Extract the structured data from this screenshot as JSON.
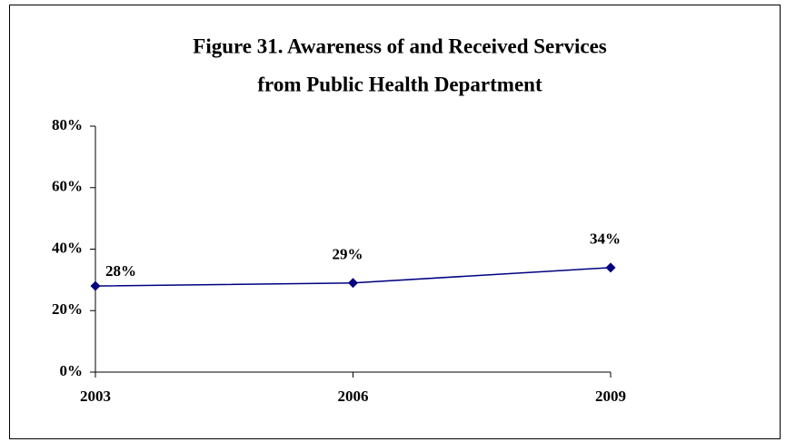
{
  "chart_data": {
    "type": "line",
    "title": [
      "Figure 31. Awareness of and Received Services",
      "from Public Health Department"
    ],
    "categories": [
      "2003",
      "2006",
      "2009"
    ],
    "values": [
      28,
      29,
      34
    ],
    "value_labels": [
      "28%",
      "29%",
      "34%"
    ],
    "color": "#000080",
    "ylim": [
      0,
      80
    ],
    "yticks": [
      {
        "value": 0,
        "label": "0%"
      },
      {
        "value": 20,
        "label": "20%"
      },
      {
        "value": 40,
        "label": "40%"
      },
      {
        "value": 60,
        "label": "60%"
      },
      {
        "value": 80,
        "label": "80%"
      }
    ],
    "grid": false
  }
}
